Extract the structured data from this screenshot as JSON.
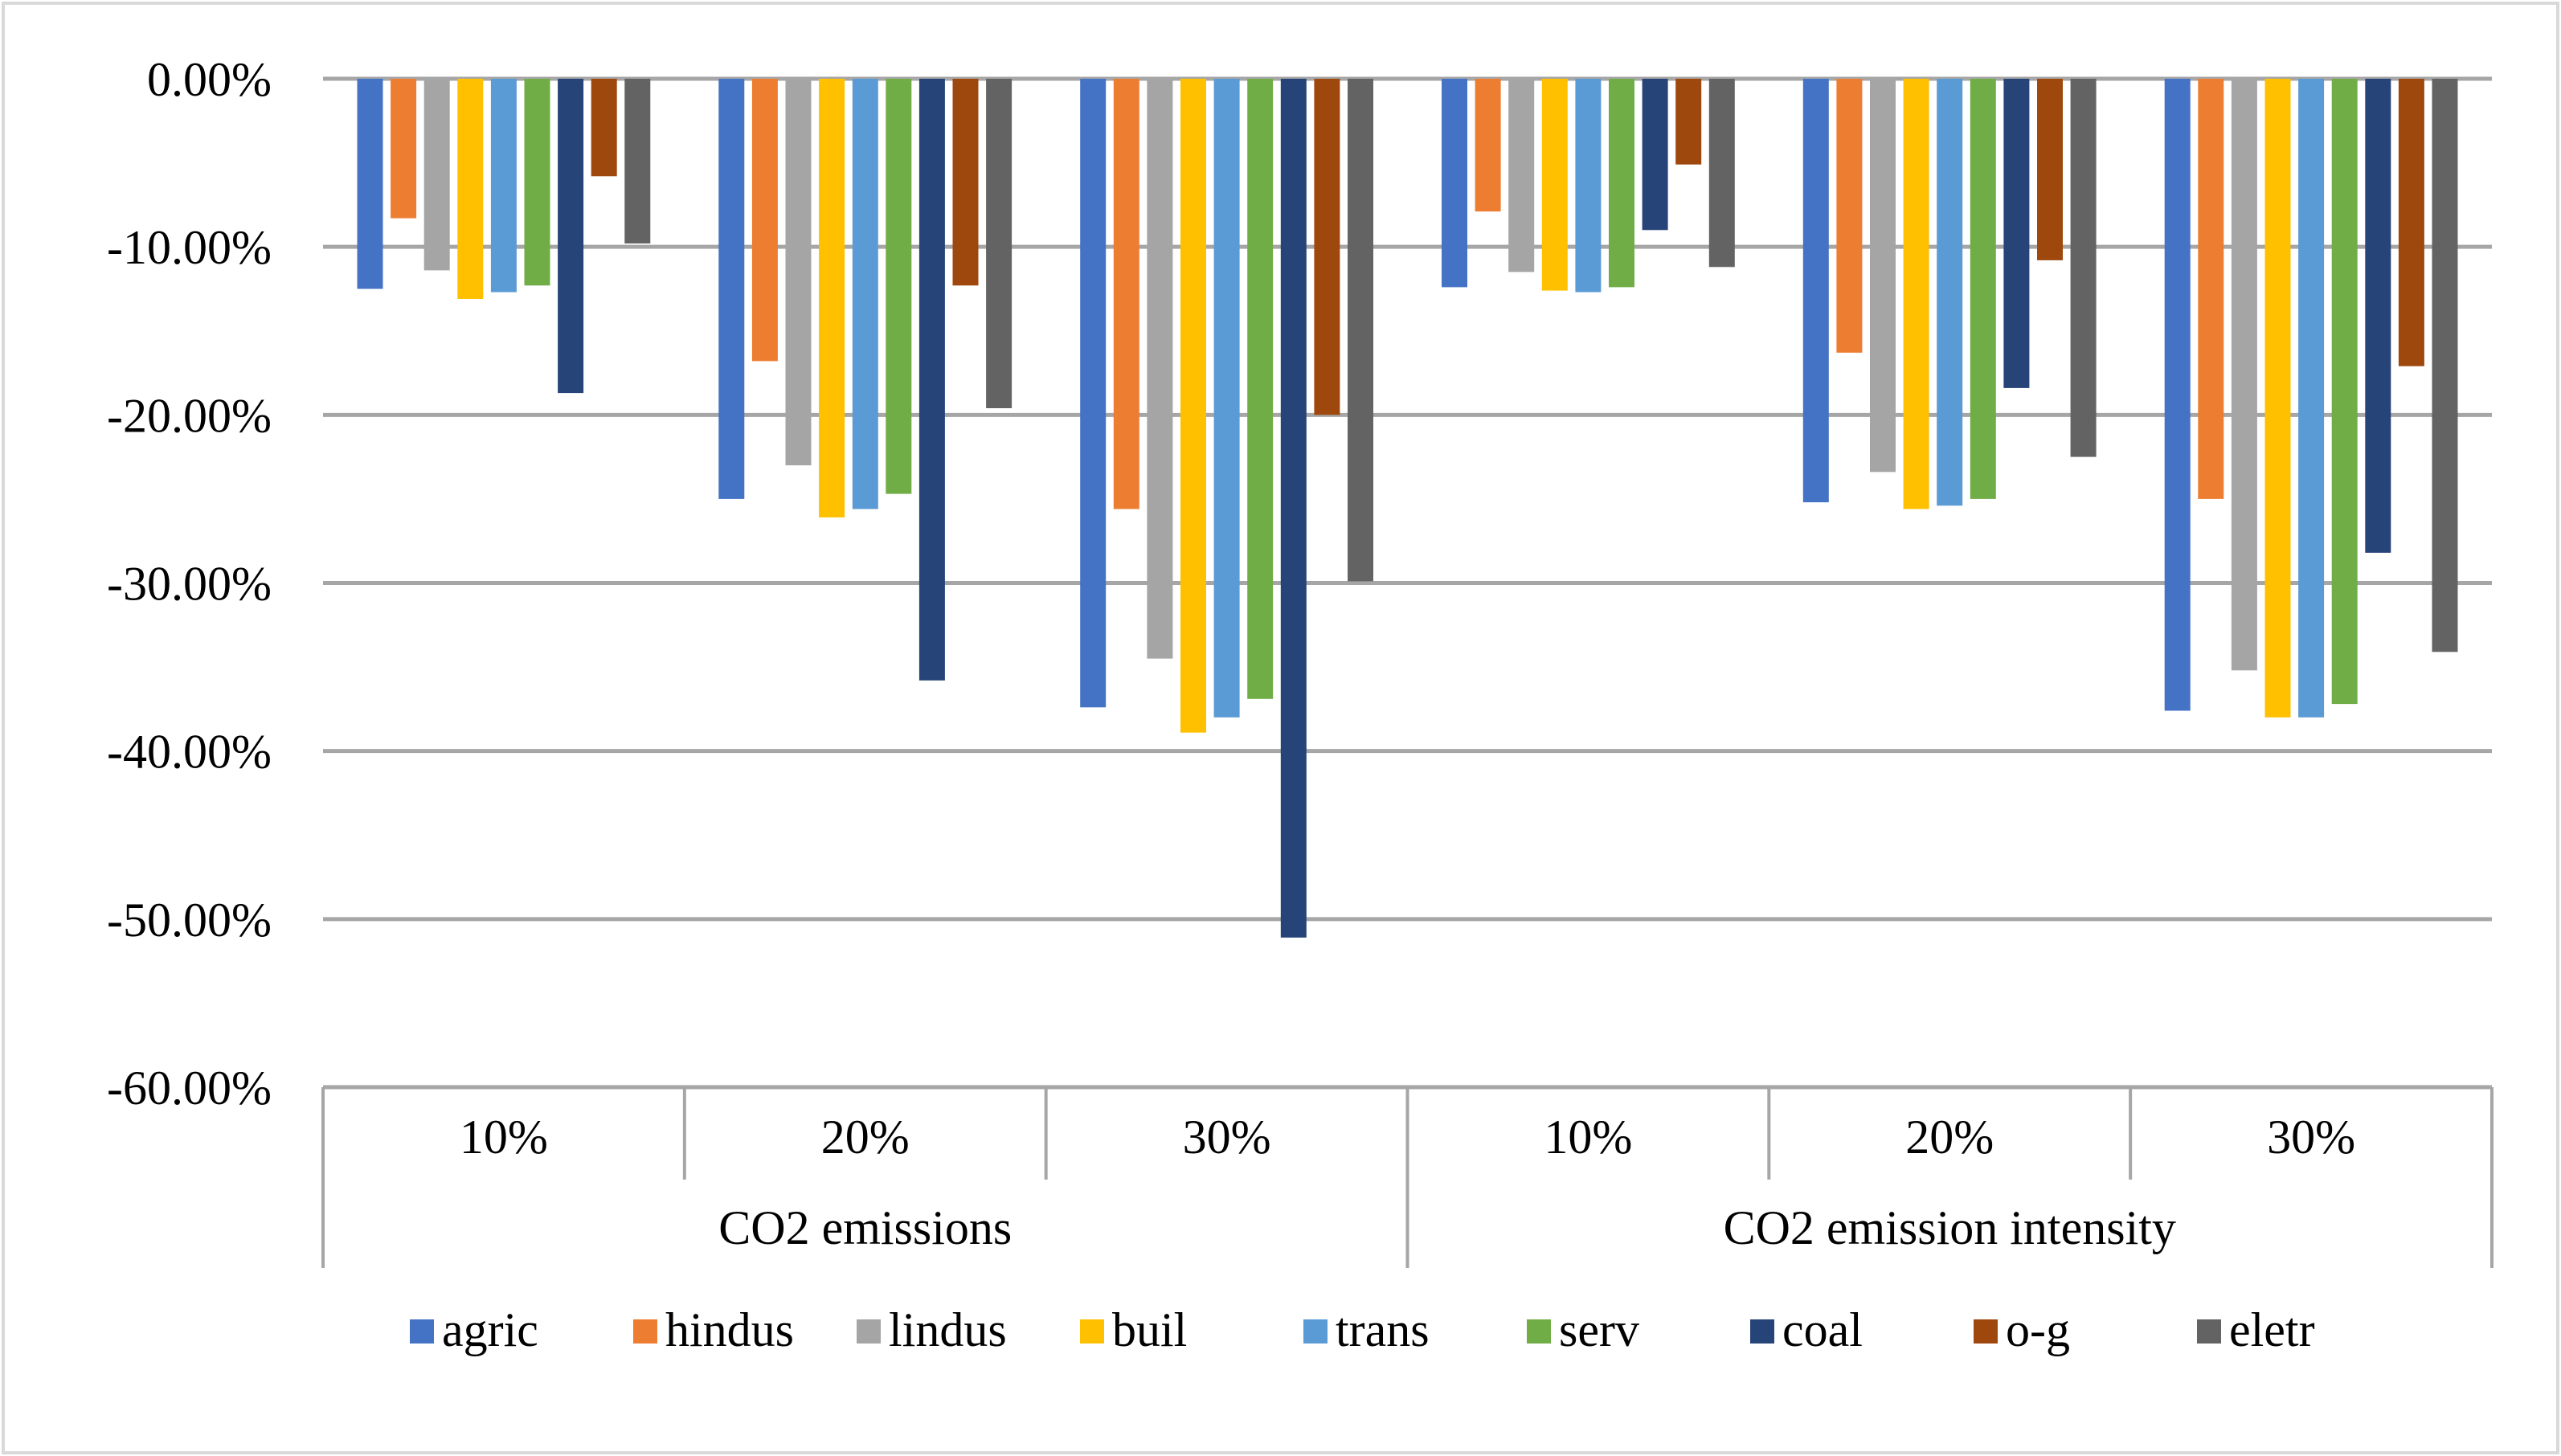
{
  "chart_data": {
    "type": "bar",
    "title": "",
    "xlabel": "",
    "ylabel": "",
    "ylim": [
      -60,
      0
    ],
    "yticks": [
      0,
      -10,
      -20,
      -30,
      -40,
      -50,
      -60
    ],
    "ytick_labels": [
      "0.00%",
      "-10.00%",
      "-20.00%",
      "-30.00%",
      "-40.00%",
      "-50.00%",
      "-60.00%"
    ],
    "grid": true,
    "legend_position": "bottom",
    "groups": [
      {
        "label": "CO2 emissions",
        "categories": [
          "10%",
          "20%",
          "30%"
        ]
      },
      {
        "label": "CO2 emission intensity",
        "categories": [
          "10%",
          "20%",
          "30%"
        ]
      }
    ],
    "categories": [
      "10%",
      "20%",
      "30%",
      "10%",
      "20%",
      "30%"
    ],
    "series": [
      {
        "name": "agric",
        "color": "#4472C4",
        "values": [
          -12.5,
          -25.0,
          -37.4,
          -12.4,
          -25.2,
          -37.6
        ]
      },
      {
        "name": "hindus",
        "color": "#ED7D31",
        "values": [
          -8.3,
          -16.8,
          -25.6,
          -7.9,
          -16.3,
          -25.0
        ]
      },
      {
        "name": "lindus",
        "color": "#A5A5A5",
        "values": [
          -11.4,
          -23.0,
          -34.5,
          -11.5,
          -23.4,
          -35.2
        ]
      },
      {
        "name": "buil",
        "color": "#FFC000",
        "values": [
          -13.1,
          -26.1,
          -38.9,
          -12.6,
          -25.6,
          -38.0
        ]
      },
      {
        "name": "trans",
        "color": "#5B9BD5",
        "values": [
          -12.7,
          -25.6,
          -38.0,
          -12.7,
          -25.4,
          -38.0
        ]
      },
      {
        "name": "serv",
        "color": "#70AD47",
        "values": [
          -12.3,
          -24.7,
          -36.9,
          -12.4,
          -25.0,
          -37.2
        ]
      },
      {
        "name": "coal",
        "color": "#264478",
        "values": [
          -18.7,
          -35.8,
          -51.1,
          -9.0,
          -18.4,
          -28.2
        ]
      },
      {
        "name": "o-g",
        "color": "#9E480E",
        "values": [
          -5.8,
          -12.3,
          -20.0,
          -5.1,
          -10.8,
          -17.1
        ]
      },
      {
        "name": "eletr",
        "color": "#636363",
        "values": [
          -9.8,
          -19.6,
          -29.9,
          -11.2,
          -22.5,
          -34.1
        ]
      }
    ]
  }
}
